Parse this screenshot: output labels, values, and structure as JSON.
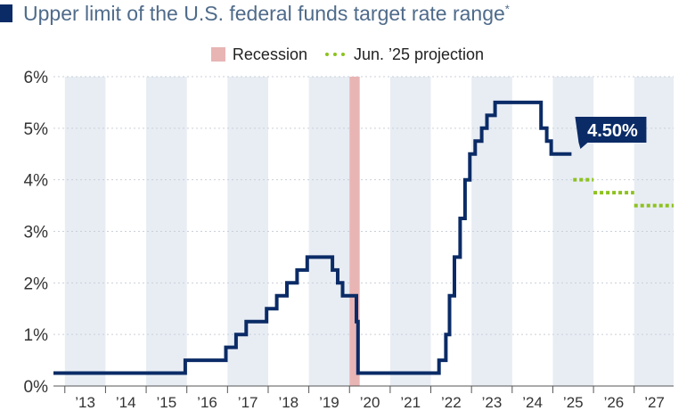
{
  "title": {
    "text": "Upper limit of the U.S. federal funds target rate range",
    "footnote_mark": "*"
  },
  "legend": {
    "recession_label": "Recession",
    "projection_label": "Jun. ’25 projection"
  },
  "colors": {
    "rate_line": "#0a2b66",
    "projection": "#8dc21f",
    "recession": "#e8b4b4",
    "band": "#e8edf4",
    "callout_bg": "#0a2b66"
  },
  "chart_data": {
    "type": "line",
    "title": "Upper limit of the U.S. federal funds target rate range",
    "y_unit": "%",
    "ylim": [
      0,
      6
    ],
    "xlim": [
      2012.72,
      2027.97
    ],
    "y_ticks": [
      {
        "value": 0,
        "label": "0%"
      },
      {
        "value": 1,
        "label": "1%"
      },
      {
        "value": 2,
        "label": "2%"
      },
      {
        "value": 3,
        "label": "3%"
      },
      {
        "value": 4,
        "label": "4%"
      },
      {
        "value": 5,
        "label": "5%"
      },
      {
        "value": 6,
        "label": "6%"
      }
    ],
    "x_ticks": [
      {
        "value": 2013,
        "label": "’13"
      },
      {
        "value": 2014,
        "label": "’14"
      },
      {
        "value": 2015,
        "label": "’15"
      },
      {
        "value": 2016,
        "label": "’16"
      },
      {
        "value": 2017,
        "label": "’17"
      },
      {
        "value": 2018,
        "label": "’18"
      },
      {
        "value": 2019,
        "label": "’19"
      },
      {
        "value": 2020,
        "label": "’20"
      },
      {
        "value": 2021,
        "label": "’21"
      },
      {
        "value": 2022,
        "label": "’22"
      },
      {
        "value": 2023,
        "label": "’23"
      },
      {
        "value": 2024,
        "label": "’24"
      },
      {
        "value": 2025,
        "label": "’25"
      },
      {
        "value": 2026,
        "label": "’26"
      },
      {
        "value": 2027,
        "label": "’27"
      }
    ],
    "grid": true,
    "recession": [
      2020.0,
      2020.25
    ],
    "series": [
      {
        "name": "Upper limit of the U.S. federal funds target rate range",
        "points": [
          [
            2012.72,
            0.25
          ],
          [
            2015.96,
            0.25
          ],
          [
            2015.96,
            0.5
          ],
          [
            2016.96,
            0.5
          ],
          [
            2016.96,
            0.75
          ],
          [
            2017.21,
            0.75
          ],
          [
            2017.21,
            1.0
          ],
          [
            2017.46,
            1.0
          ],
          [
            2017.46,
            1.25
          ],
          [
            2017.96,
            1.25
          ],
          [
            2017.96,
            1.5
          ],
          [
            2018.21,
            1.5
          ],
          [
            2018.21,
            1.75
          ],
          [
            2018.46,
            1.75
          ],
          [
            2018.46,
            2.0
          ],
          [
            2018.71,
            2.0
          ],
          [
            2018.71,
            2.25
          ],
          [
            2018.96,
            2.25
          ],
          [
            2018.96,
            2.5
          ],
          [
            2019.58,
            2.5
          ],
          [
            2019.58,
            2.25
          ],
          [
            2019.71,
            2.25
          ],
          [
            2019.71,
            2.0
          ],
          [
            2019.83,
            2.0
          ],
          [
            2019.83,
            1.75
          ],
          [
            2020.17,
            1.75
          ],
          [
            2020.17,
            1.25
          ],
          [
            2020.21,
            1.25
          ],
          [
            2020.21,
            0.25
          ],
          [
            2022.2,
            0.25
          ],
          [
            2022.2,
            0.5
          ],
          [
            2022.37,
            0.5
          ],
          [
            2022.37,
            1.0
          ],
          [
            2022.46,
            1.0
          ],
          [
            2022.46,
            1.75
          ],
          [
            2022.58,
            1.75
          ],
          [
            2022.58,
            2.5
          ],
          [
            2022.72,
            2.5
          ],
          [
            2022.72,
            3.25
          ],
          [
            2022.84,
            3.25
          ],
          [
            2022.84,
            4.0
          ],
          [
            2022.96,
            4.0
          ],
          [
            2022.96,
            4.5
          ],
          [
            2023.09,
            4.5
          ],
          [
            2023.09,
            4.75
          ],
          [
            2023.25,
            4.75
          ],
          [
            2023.25,
            5.0
          ],
          [
            2023.38,
            5.0
          ],
          [
            2023.38,
            5.25
          ],
          [
            2023.58,
            5.25
          ],
          [
            2023.58,
            5.5
          ],
          [
            2024.71,
            5.5
          ],
          [
            2024.71,
            5.0
          ],
          [
            2024.85,
            5.0
          ],
          [
            2024.85,
            4.75
          ],
          [
            2024.96,
            4.75
          ],
          [
            2024.96,
            4.5
          ],
          [
            2025.46,
            4.5
          ]
        ]
      }
    ],
    "projection": [
      {
        "x_start": 2025.5,
        "x_end": 2026.0,
        "y": 4.0
      },
      {
        "x_start": 2026.0,
        "x_end": 2027.0,
        "y": 3.75
      },
      {
        "x_start": 2027.0,
        "x_end": 2027.97,
        "y": 3.5
      }
    ],
    "callout": {
      "label": "4.50%",
      "value": 4.5
    }
  }
}
